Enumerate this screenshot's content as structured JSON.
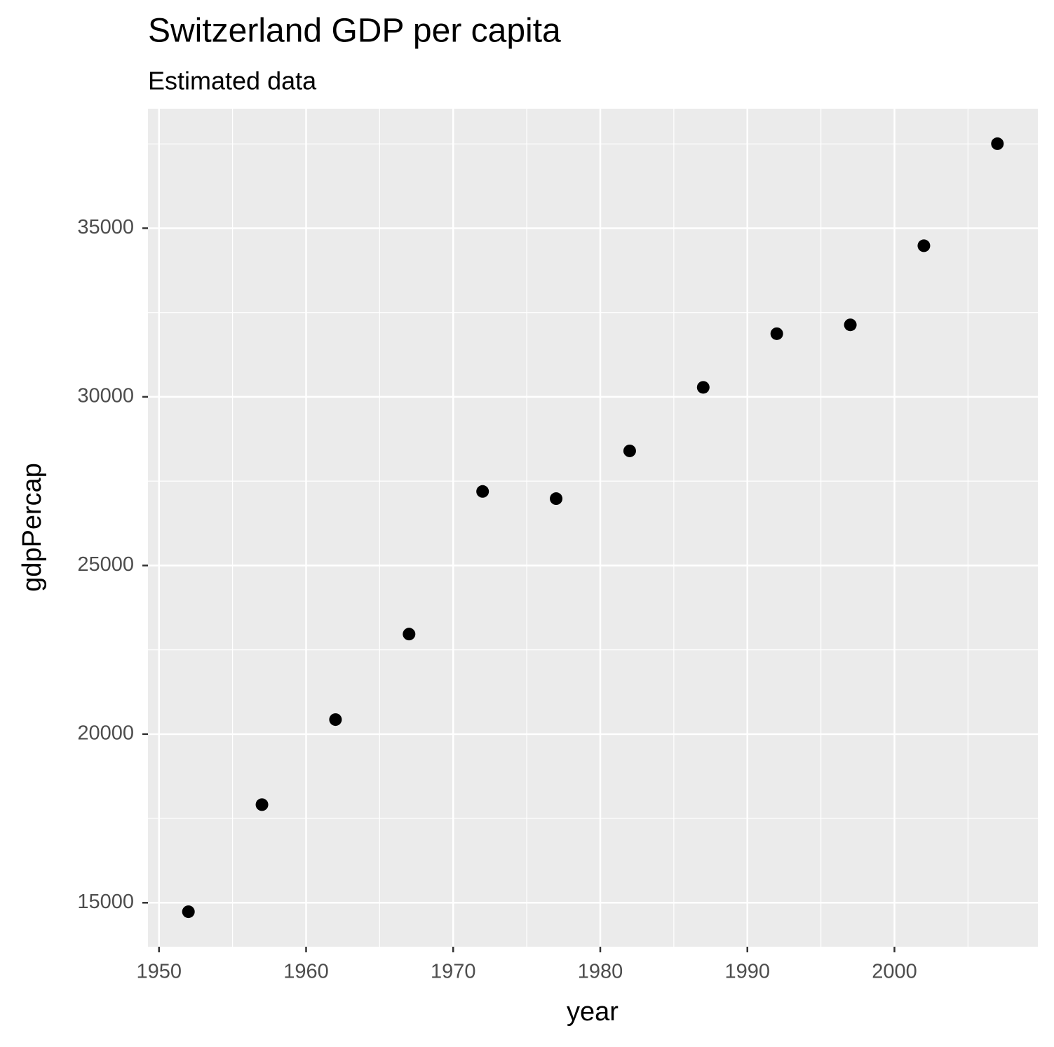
{
  "chart_data": {
    "type": "scatter",
    "title": "Switzerland GDP per capita",
    "subtitle": "Estimated data",
    "x_label": "year",
    "y_label": "gdpPercap",
    "x": [
      1952,
      1957,
      1962,
      1967,
      1972,
      1977,
      1982,
      1987,
      1992,
      1997,
      2002,
      2007
    ],
    "values": [
      14734,
      17909,
      20431,
      22966,
      27195,
      26982,
      28398,
      30282,
      31872,
      32135,
      34481,
      37506
    ],
    "color": "#000000",
    "xlim": [
      1949.25,
      2009.75
    ],
    "xticks": [
      1950,
      1960,
      1970,
      1980,
      1990,
      2000
    ],
    "ylim": [
      13696,
      38544
    ],
    "yticks": [
      15000,
      20000,
      25000,
      30000,
      35000
    ],
    "grid": true
  }
}
